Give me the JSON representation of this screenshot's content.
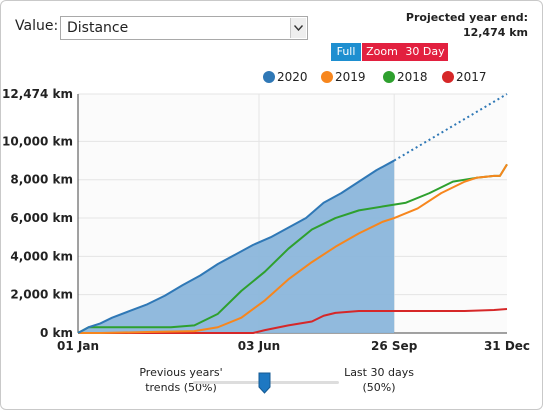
{
  "controls": {
    "value_label": "Value:",
    "selected_metric": "Distance"
  },
  "projection": {
    "title": "Projected year end:",
    "value": "12,474 km"
  },
  "buttons": {
    "full": "Full",
    "zoom": "Zoom",
    "thirty_day": "30 Day"
  },
  "colors": {
    "2020": "#2f78b6",
    "2019": "#f7861d",
    "2018": "#2ea02e",
    "2017": "#d62728",
    "fill": "#8bb6db",
    "active_button": "#1e8fd0",
    "inactive_button": "#e2203f"
  },
  "slider": {
    "left_label_line1": "Previous years'",
    "left_label_line2": "trends (50%)",
    "right_label_line1": "Last 30 days",
    "right_label_line2": "(50%)",
    "value_percent": 50
  },
  "chart_data": {
    "type": "line",
    "title": "",
    "xlabel": "",
    "ylabel": "",
    "x_unit": "day of year",
    "x_ticks": [
      {
        "day": 1,
        "label": "01 Jan"
      },
      {
        "day": 155,
        "label": "03 Jun"
      },
      {
        "day": 270,
        "label": "26 Sep"
      },
      {
        "day": 366,
        "label": "31 Dec"
      }
    ],
    "y_ticks": [
      {
        "value": 0,
        "label": "0 km"
      },
      {
        "value": 2000,
        "label": "2,000 km"
      },
      {
        "value": 4000,
        "label": "4,000 km"
      },
      {
        "value": 6000,
        "label": "6,000 km"
      },
      {
        "value": 8000,
        "label": "8,000 km"
      },
      {
        "value": 10000,
        "label": "10,000 km"
      },
      {
        "value": 12474,
        "label": "12,474 km"
      }
    ],
    "xlim": [
      1,
      366
    ],
    "ylim": [
      0,
      12474
    ],
    "grid": true,
    "legend_position": "top-right",
    "series": [
      {
        "name": "2020",
        "filled": true,
        "x": [
          1,
          10,
          20,
          30,
          45,
          60,
          75,
          90,
          105,
          120,
          135,
          150,
          165,
          180,
          195,
          210,
          225,
          240,
          255,
          270
        ],
        "values": [
          0,
          300,
          500,
          800,
          1150,
          1500,
          1950,
          2500,
          3000,
          3600,
          4100,
          4600,
          5000,
          5500,
          6000,
          6800,
          7300,
          7900,
          8500,
          9000
        ]
      },
      {
        "name": "2020 projection",
        "dotted": true,
        "x": [
          270,
          366
        ],
        "values": [
          9000,
          12474
        ]
      },
      {
        "name": "2019",
        "x": [
          1,
          20,
          60,
          100,
          120,
          140,
          160,
          180,
          200,
          220,
          240,
          260,
          270,
          290,
          310,
          330,
          340,
          355,
          360,
          366
        ],
        "values": [
          0,
          0,
          50,
          100,
          300,
          800,
          1700,
          2800,
          3700,
          4500,
          5200,
          5800,
          6000,
          6500,
          7300,
          7900,
          8100,
          8200,
          8200,
          8800
        ]
      },
      {
        "name": "2018",
        "x": [
          1,
          10,
          40,
          80,
          100,
          120,
          140,
          160,
          180,
          200,
          220,
          240,
          260,
          280,
          300,
          320,
          340,
          355,
          360,
          366
        ],
        "values": [
          0,
          300,
          300,
          300,
          400,
          1000,
          2200,
          3200,
          4400,
          5400,
          6000,
          6400,
          6600,
          6800,
          7300,
          7900,
          8100,
          8200,
          8200,
          8800
        ]
      },
      {
        "name": "2017",
        "x": [
          1,
          150,
          160,
          180,
          200,
          210,
          220,
          240,
          270,
          300,
          330,
          355,
          366
        ],
        "values": [
          0,
          0,
          150,
          400,
          600,
          900,
          1050,
          1150,
          1150,
          1150,
          1150,
          1200,
          1250
        ]
      }
    ]
  }
}
